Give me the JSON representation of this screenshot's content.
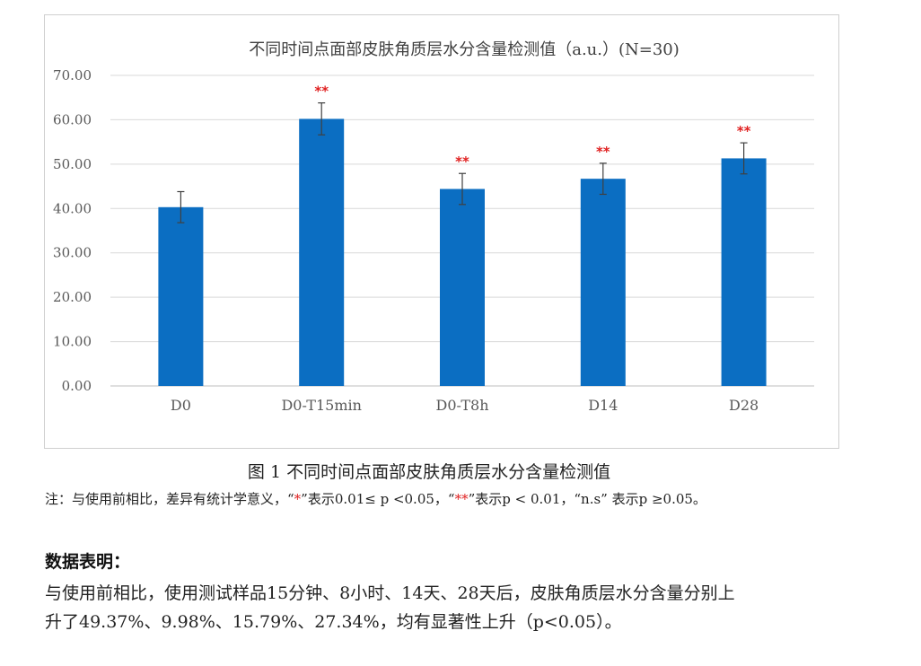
{
  "chart_data": {
    "type": "bar",
    "title": "不同时间点面部皮肤角质层水分含量检测值（a.u.）(N=30)",
    "categories": [
      "D0",
      "D0-T15min",
      "D0-T8h",
      "D14",
      "D28"
    ],
    "values": [
      40.3,
      60.2,
      44.4,
      46.7,
      51.3
    ],
    "error": [
      3.5,
      3.6,
      3.5,
      3.5,
      3.5
    ],
    "significance": [
      "",
      "**",
      "**",
      "**",
      "**"
    ],
    "yticks": [
      "0.00",
      "10.00",
      "20.00",
      "30.00",
      "40.00",
      "50.00",
      "60.00",
      "70.00"
    ],
    "ylim": [
      0,
      70
    ],
    "grid": true,
    "bar_color": "#0b6ec2",
    "significance_color": "#e02020"
  },
  "caption": "图 1 不同时间点面部皮肤角质层水分含量检测值",
  "note": {
    "prefix": "注：与使用前相比，差异有统计学意义，“",
    "star1": "*",
    "mid1": "”表示0.01≤ p <0.05，“",
    "star2": "**",
    "mid2": "”表示p < 0.01，“n.s” 表示p ≥0.05。"
  },
  "summary": {
    "title": "数据表明：",
    "line1": "与使用前相比，使用测试样品15分钟、8小时、14天、28天后，皮肤角质层水分含量分别上",
    "line2": "升了49.37%、9.98%、15.79%、27.34%，均有显著性上升（p<0.05）。"
  }
}
